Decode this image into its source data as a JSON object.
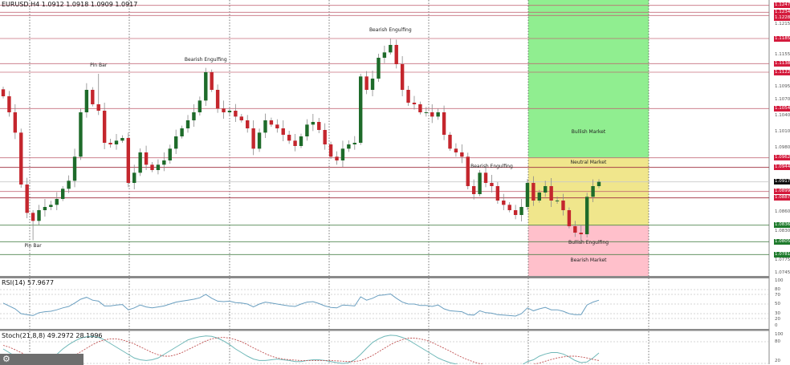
{
  "header": {
    "symbol_info": "EURUSD,H4  1.0912 1.0918 1.0909 1.0917",
    "rsi_info": "RSI(14) 57.9677",
    "stoch_info": "Stoch(21,8,8) 49.2972 28.1996"
  },
  "colors": {
    "bull_candle": "#1e6b2a",
    "bear_candle": "#c4262d",
    "wick": "#8a8a8a",
    "resistance_line": "#c06070",
    "strong_line": "#a03040",
    "support_line": "#3d7a3d",
    "bullish_zone": "#90ee90",
    "neutral_zone": "#f0e68c",
    "bearish_zone": "#ffc0cb",
    "rsi_line": "#6a9fc0",
    "stoch_main": "#6fb8b8",
    "stoch_signal": "#c05050"
  },
  "annotations": [
    {
      "text": "Pin Bar",
      "candle": 16,
      "pos": "above"
    },
    {
      "text": "Pin Bar",
      "candle": 5,
      "pos": "below"
    },
    {
      "text": "Bearish Engulfing",
      "candle": 34,
      "pos": "above"
    },
    {
      "text": "Bearish Engulfing",
      "candle": 65,
      "pos": "above"
    },
    {
      "text": "Bearish Engulfing",
      "candle": 82,
      "pos": "above"
    }
  ],
  "zones": [
    {
      "label": "Bullish Market",
      "from": 1.0962,
      "to": 1.1257,
      "color_key": "bullish_zone"
    },
    {
      "label": "Neutral Market",
      "from": 1.0836,
      "to": 1.0962,
      "color_key": "neutral_zone"
    },
    {
      "label": "Bullish Engulfing",
      "from": 1.0741,
      "to": 1.0836,
      "color_key": "bearish_zone",
      "label_price": 1.0803
    },
    {
      "label": "Bearish Market",
      "from": 1.0741,
      "to": 1.0836,
      "color_key": "bearish_zone",
      "label_price": 1.077
    }
  ],
  "chart_data": {
    "type": "candlestick",
    "title": "",
    "ylim": [
      1.0741,
      1.1257
    ],
    "open_first": 1.109,
    "close": [
      1.1077,
      1.1047,
      1.1009,
      1.0912,
      1.0859,
      1.0844,
      1.0864,
      1.087,
      1.0874,
      1.0885,
      1.0904,
      1.0919,
      1.0964,
      1.1047,
      1.1089,
      1.1062,
      1.105,
      1.099,
      1.0987,
      1.0994,
      1.0999,
      1.0915,
      1.0934,
      1.0972,
      1.0949,
      1.0939,
      1.0949,
      1.0957,
      1.0979,
      1.1002,
      1.1017,
      1.1032,
      1.1047,
      1.1069,
      1.1122,
      1.1089,
      1.1054,
      1.1047,
      1.105,
      1.1039,
      1.1032,
      1.1017,
      1.0979,
      1.1009,
      1.1032,
      1.1024,
      1.1017,
      1.1005,
      1.0994,
      1.0984,
      1.1002,
      1.1024,
      1.1029,
      1.1014,
      1.0987,
      1.0964,
      1.0957,
      1.0979,
      1.0987,
      1.099,
      1.1114,
      1.1089,
      1.111,
      1.1149,
      1.1159,
      1.1173,
      1.1137,
      1.1089,
      1.1065,
      1.1062,
      1.1047,
      1.1047,
      1.1039,
      1.1047,
      1.1005,
      1.0979,
      1.0972,
      1.0964,
      1.0909,
      1.0894,
      1.0934,
      1.0915,
      1.0909,
      1.0882,
      1.0874,
      1.0864,
      1.0855,
      1.087,
      1.0915,
      1.0882,
      1.0897,
      1.0909,
      1.0882,
      1.0882,
      1.0864,
      1.0834,
      1.0822,
      1.0819,
      1.0889,
      1.0909,
      1.0917
    ],
    "extremes": {
      "5": {
        "low": 1.0808
      },
      "16": {
        "high": 1.1119
      },
      "34": {
        "high": 1.113
      },
      "65": {
        "high": 1.1185
      }
    },
    "current_price": 1.0917,
    "levels": [
      {
        "price": 1.1247,
        "label": "1.1247",
        "kind": "red"
      },
      {
        "price": 1.1234,
        "label": "1.1234",
        "kind": "red"
      },
      {
        "price": 1.1228,
        "label": "1.1228",
        "kind": "red"
      },
      {
        "price": 1.1185,
        "label": "1.1185",
        "kind": "red"
      },
      {
        "price": 1.1138,
        "label": "1.1138",
        "kind": "red"
      },
      {
        "price": 1.1122,
        "label": "1.1122",
        "kind": "red"
      },
      {
        "price": 1.1054,
        "label": "1.1054",
        "kind": "red"
      },
      {
        "price": 1.0962,
        "label": "1.0962",
        "kind": "red"
      },
      {
        "price": 1.0944,
        "label": "1.0944",
        "kind": "strong"
      },
      {
        "price": 1.0899,
        "label": "1.0899",
        "kind": "red"
      },
      {
        "price": 1.0887,
        "label": "1.0887",
        "kind": "strong"
      },
      {
        "price": 1.0836,
        "label": "1.0836",
        "kind": "green"
      },
      {
        "price": 1.0805,
        "label": "1.0805",
        "kind": "green"
      },
      {
        "price": 1.0781,
        "label": "1.0781",
        "kind": "green"
      }
    ],
    "price_ticks": [
      "1.1215",
      "1.1155",
      "1.1095",
      "1.1070",
      "1.1040",
      "1.1010",
      "1.0980",
      "1.0860",
      "1.0830",
      "1.0775",
      "1.0745"
    ],
    "rsi": {
      "name": "RSI(14)",
      "levels": [
        80,
        70,
        50,
        30,
        20
      ],
      "scale_labels": [
        "100",
        "80",
        "70",
        "50",
        "30",
        "20",
        "0"
      ],
      "values": [
        52,
        46,
        40,
        30,
        28,
        26,
        32,
        34,
        35,
        38,
        42,
        45,
        52,
        60,
        64,
        58,
        56,
        46,
        46,
        48,
        49,
        38,
        42,
        48,
        44,
        42,
        44,
        46,
        50,
        54,
        56,
        58,
        60,
        63,
        70,
        62,
        56,
        55,
        56,
        53,
        52,
        50,
        44,
        50,
        54,
        52,
        50,
        48,
        46,
        45,
        50,
        54,
        55,
        51,
        46,
        43,
        42,
        48,
        47,
        46,
        65,
        58,
        62,
        68,
        69,
        71,
        62,
        54,
        50,
        50,
        47,
        47,
        45,
        48,
        40,
        36,
        35,
        34,
        28,
        27,
        36,
        32,
        31,
        28,
        27,
        26,
        25,
        30,
        42,
        36,
        40,
        43,
        38,
        38,
        35,
        30,
        28,
        28,
        48,
        54,
        58
      ]
    },
    "stochastic": {
      "name": "Stoch(21,8,8)",
      "scale_labels": [
        "100",
        "80",
        "20"
      ],
      "main": [
        60,
        50,
        40,
        30,
        20,
        15,
        15,
        20,
        30,
        45,
        60,
        72,
        82,
        90,
        94,
        95,
        92,
        85,
        75,
        65,
        55,
        45,
        35,
        30,
        28,
        30,
        35,
        45,
        55,
        65,
        75,
        85,
        90,
        94,
        96,
        95,
        90,
        82,
        72,
        60,
        50,
        40,
        32,
        28,
        28,
        30,
        32,
        30,
        28,
        25,
        25,
        28,
        30,
        30,
        28,
        25,
        22,
        20,
        22,
        30,
        45,
        62,
        78,
        88,
        95,
        98,
        97,
        92,
        85,
        75,
        65,
        55,
        45,
        35,
        28,
        22,
        18,
        15,
        12,
        10,
        10,
        12,
        12,
        10,
        8,
        8,
        10,
        15,
        25,
        30,
        40,
        46,
        50,
        50,
        46,
        38,
        28,
        22,
        24,
        35,
        49
      ],
      "signal": [
        70,
        65,
        58,
        50,
        42,
        35,
        28,
        24,
        22,
        23,
        27,
        33,
        42,
        52,
        62,
        72,
        80,
        85,
        88,
        88,
        85,
        80,
        74,
        66,
        58,
        50,
        44,
        40,
        40,
        44,
        50,
        58,
        66,
        74,
        82,
        88,
        91,
        92,
        90,
        86,
        80,
        72,
        63,
        55,
        47,
        40,
        35,
        32,
        30,
        29,
        28,
        28,
        28,
        28,
        28,
        28,
        27,
        26,
        25,
        25,
        28,
        34,
        42,
        52,
        62,
        72,
        80,
        86,
        90,
        90,
        88,
        84,
        78,
        70,
        62,
        54,
        45,
        37,
        30,
        24,
        19,
        16,
        14,
        13,
        12,
        11,
        11,
        12,
        14,
        17,
        21,
        26,
        31,
        35,
        38,
        40,
        40,
        38,
        35,
        31,
        28
      ]
    }
  }
}
